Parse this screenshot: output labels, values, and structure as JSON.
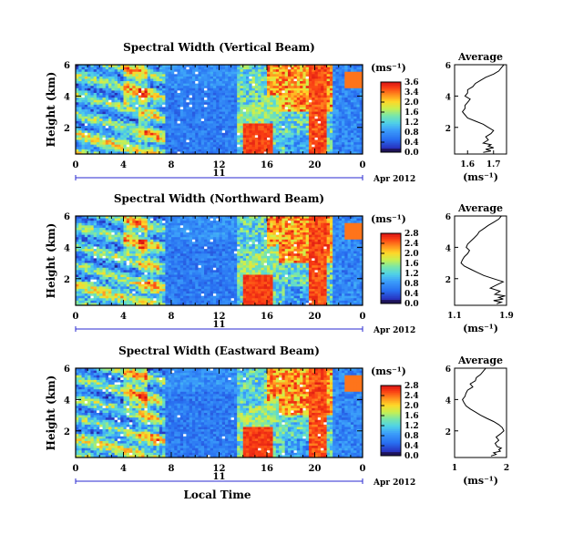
{
  "chart_data": [
    {
      "type": "heatmap",
      "title": "Spectral Width (Vertical Beam)",
      "ylabel": "Height (km)",
      "x_ticks": [
        "0",
        "4",
        "8",
        "12",
        "16",
        "20",
        "0"
      ],
      "y_ticks": [
        "6",
        "4",
        "2"
      ],
      "date_day": "11",
      "date_label": "Apr 2012",
      "ylim": [
        0.3,
        6.0
      ],
      "xlim": [
        0,
        24
      ],
      "colorbar": {
        "unit": "(ms⁻¹)",
        "ticks": [
          "3.6",
          "3.4",
          "2.0",
          "1.6",
          "1.2",
          "0.8",
          "0.4",
          "0.0"
        ],
        "range": [
          0.0,
          3.6
        ]
      },
      "profile": {
        "title": "Average",
        "xlabel": "(ms⁻¹)",
        "x_ticks": [
          "1.6",
          "1.7"
        ],
        "y_ticks": [
          "6",
          "4",
          "2"
        ],
        "xlim": [
          1.55,
          1.75
        ],
        "ylim": [
          0.3,
          6.0
        ],
        "x": [
          1.74,
          1.73,
          1.72,
          1.7,
          1.67,
          1.65,
          1.63,
          1.62,
          1.6,
          1.6,
          1.59,
          1.61,
          1.6,
          1.59,
          1.59,
          1.58,
          1.59,
          1.6,
          1.63,
          1.66,
          1.68,
          1.7,
          1.69,
          1.67,
          1.68,
          1.66,
          1.69,
          1.68,
          1.7,
          1.67,
          1.69,
          1.66
        ],
        "y": [
          6.0,
          5.8,
          5.6,
          5.4,
          5.2,
          5.0,
          4.8,
          4.6,
          4.4,
          4.2,
          4.0,
          3.8,
          3.6,
          3.4,
          3.2,
          3.0,
          2.8,
          2.6,
          2.4,
          2.2,
          2.0,
          1.8,
          1.6,
          1.4,
          1.2,
          1.0,
          0.9,
          0.8,
          0.7,
          0.6,
          0.5,
          0.4
        ]
      }
    },
    {
      "type": "heatmap",
      "title": "Spectral Width (Northward Beam)",
      "ylabel": "Height (km)",
      "x_ticks": [
        "0",
        "4",
        "8",
        "12",
        "16",
        "20",
        "0"
      ],
      "y_ticks": [
        "6",
        "4",
        "2"
      ],
      "date_day": "11",
      "date_label": "Apr 2012",
      "ylim": [
        0.3,
        6.0
      ],
      "xlim": [
        0,
        24
      ],
      "colorbar": {
        "unit": "(ms⁻¹)",
        "ticks": [
          "2.8",
          "2.4",
          "2.0",
          "1.6",
          "1.2",
          "0.8",
          "0.4",
          "0.0"
        ],
        "range": [
          0.0,
          2.8
        ]
      },
      "profile": {
        "title": "Average",
        "xlabel": "(ms⁻¹)",
        "x_ticks": [
          "1.1",
          "1.9"
        ],
        "y_ticks": [
          "6",
          "4",
          "2"
        ],
        "xlim": [
          1.1,
          1.9
        ],
        "ylim": [
          0.3,
          6.0
        ],
        "x": [
          1.82,
          1.78,
          1.7,
          1.62,
          1.55,
          1.48,
          1.45,
          1.4,
          1.35,
          1.3,
          1.28,
          1.33,
          1.3,
          1.25,
          1.22,
          1.2,
          1.25,
          1.35,
          1.45,
          1.55,
          1.7,
          1.85,
          1.75,
          1.65,
          1.8,
          1.72,
          1.88,
          1.78,
          1.85,
          1.7,
          1.82,
          1.75
        ],
        "y": [
          6.0,
          5.8,
          5.6,
          5.4,
          5.2,
          5.0,
          4.8,
          4.6,
          4.4,
          4.2,
          4.0,
          3.8,
          3.6,
          3.4,
          3.2,
          3.0,
          2.8,
          2.6,
          2.4,
          2.2,
          2.0,
          1.8,
          1.6,
          1.4,
          1.2,
          1.0,
          0.9,
          0.8,
          0.7,
          0.6,
          0.5,
          0.4
        ]
      }
    },
    {
      "type": "heatmap",
      "title": "Spectral Width (Eastward Beam)",
      "ylabel": "Height (km)",
      "x_ticks": [
        "0",
        "4",
        "8",
        "12",
        "16",
        "20",
        "0"
      ],
      "y_ticks": [
        "6",
        "4",
        "2"
      ],
      "date_day": "11",
      "date_label": "Apr 2012",
      "xlabel": "Local Time",
      "ylim": [
        0.3,
        6.0
      ],
      "xlim": [
        0,
        24
      ],
      "colorbar": {
        "unit": "(ms⁻¹)",
        "ticks": [
          "2.8",
          "2.4",
          "2.0",
          "1.6",
          "1.2",
          "0.8",
          "0.4",
          "0.0"
        ],
        "range": [
          0.0,
          2.8
        ]
      },
      "profile": {
        "title": "Average",
        "xlabel": "(ms⁻¹)",
        "x_ticks": [
          "1",
          "2"
        ],
        "y_ticks": [
          "6",
          "4",
          "2"
        ],
        "xlim": [
          1.0,
          2.0
        ],
        "ylim": [
          0.3,
          6.0
        ],
        "x": [
          1.6,
          1.55,
          1.5,
          1.42,
          1.4,
          1.3,
          1.35,
          1.25,
          1.22,
          1.2,
          1.15,
          1.18,
          1.22,
          1.3,
          1.4,
          1.5,
          1.62,
          1.75,
          1.85,
          1.92,
          1.95,
          1.88,
          1.8,
          1.85,
          1.78,
          1.82,
          1.9,
          1.85,
          1.88,
          1.75,
          1.8,
          1.7
        ],
        "y": [
          6.0,
          5.8,
          5.6,
          5.4,
          5.2,
          5.0,
          4.8,
          4.6,
          4.4,
          4.2,
          4.0,
          3.8,
          3.6,
          3.4,
          3.2,
          3.0,
          2.8,
          2.6,
          2.4,
          2.2,
          2.0,
          1.8,
          1.6,
          1.4,
          1.2,
          1.0,
          0.9,
          0.8,
          0.7,
          0.6,
          0.5,
          0.4
        ]
      }
    }
  ]
}
